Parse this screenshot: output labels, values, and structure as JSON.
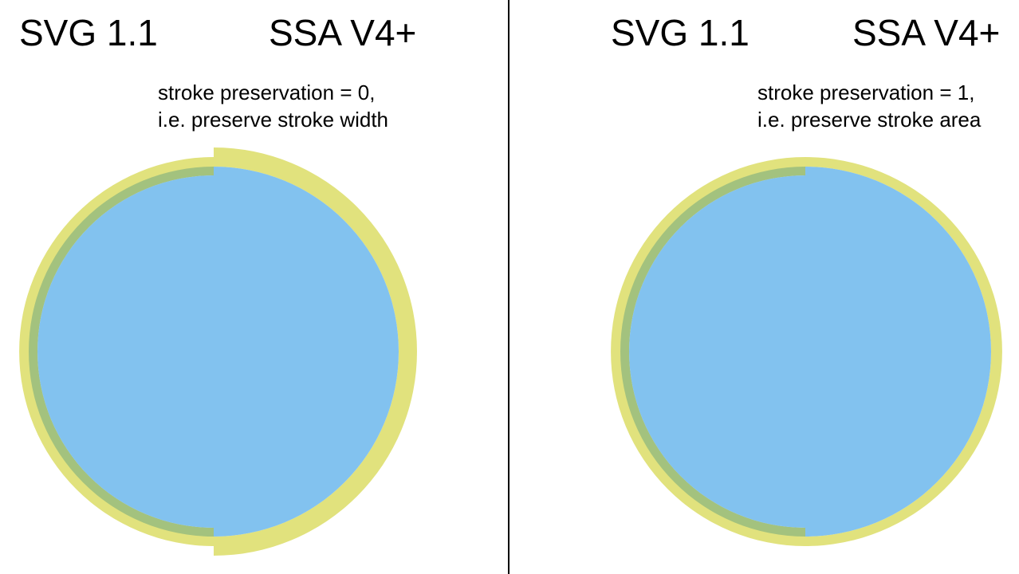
{
  "colors": {
    "fill": "#82c2ef",
    "stroke": "#e1e27d",
    "overlap": "#a3c27e",
    "divider": "#000000"
  },
  "left_panel": {
    "heading_left": "SVG 1.1",
    "heading_right": "SSA V4+",
    "caption_line1": "stroke preservation = 0,",
    "caption_line2": "i.e. preserve stroke width"
  },
  "right_panel": {
    "heading_left": "SVG 1.1",
    "heading_right": "SSA V4+",
    "caption_line1": "stroke preservation = 1,",
    "caption_line2": "i.e. preserve stroke area"
  }
}
